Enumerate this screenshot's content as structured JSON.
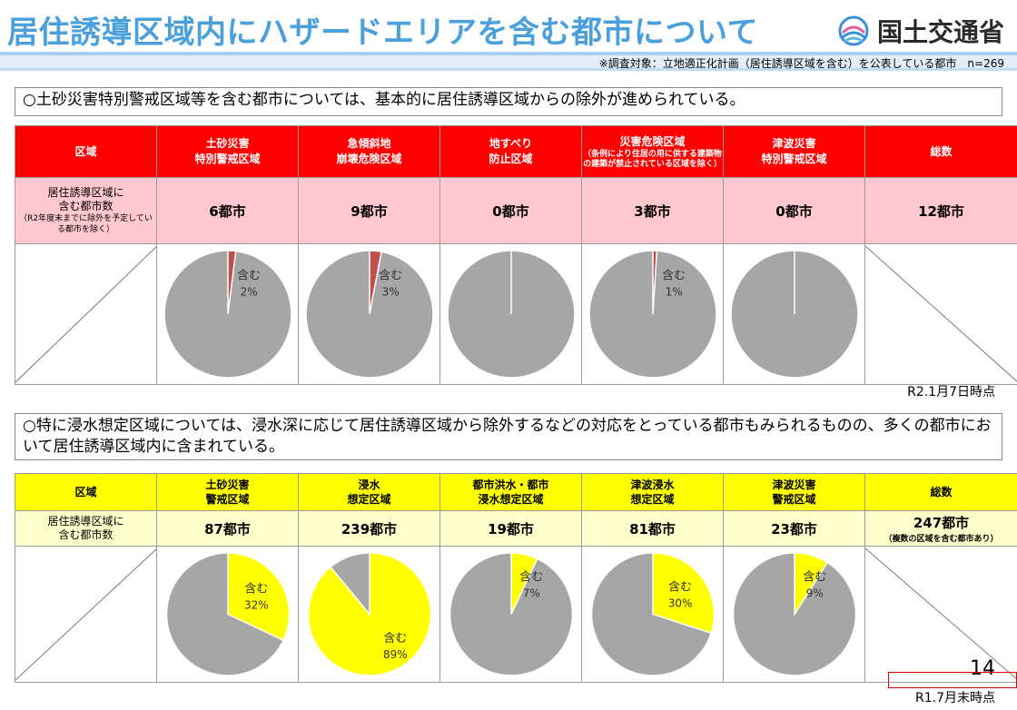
{
  "header": {
    "title": "居住誘導区域内にハザードエリアを含む都市について",
    "logo_text": "国土交通省",
    "survey_note": "※調査対象：立地適正化計画（居住誘導区域を含む）を公表している都市　n=269"
  },
  "section1": {
    "lead": "○土砂災害特別警戒区域等を含む都市については、基本的に居住誘導区域からの除外が進められている。",
    "col0_header": "区域",
    "row_label_line1": "居住誘導区域に",
    "row_label_line2": "含む都市数",
    "row_label_note": "（R2年度末までに除外を予定している都市を除く）",
    "columns": [
      {
        "line1": "土砂災害",
        "line2": "特別警戒区域",
        "count": "6都市"
      },
      {
        "line1": "急傾斜地",
        "line2": "崩壊危険区域",
        "count": "9都市"
      },
      {
        "line1": "地すべり",
        "line2": "防止区域",
        "count": "0都市"
      },
      {
        "line1": "災害危険区域",
        "line2": "（条例により住居の用に供する建築物の建築が禁止されている区域を除く）",
        "count": "3都市"
      },
      {
        "line1": "津波災害",
        "line2": "特別警戒区域",
        "count": "0都市"
      }
    ],
    "total_header": "総数",
    "total_count": "12都市",
    "date_note": "R2.1月7日時点"
  },
  "section2": {
    "lead": "○特に浸水想定区域については、浸水深に応じて居住誘導区域から除外するなどの対応をとっている都市もみられるものの、多くの都市において居住誘導区域内に含まれている。",
    "col0_header": "区域",
    "row_label_line1": "居住誘導区域に",
    "row_label_line2": "含む都市数",
    "columns": [
      {
        "line1": "土砂災害",
        "line2": "警戒区域",
        "count": "87都市"
      },
      {
        "line1": "浸水",
        "line2": "想定区域",
        "count": "239都市"
      },
      {
        "line1": "都市洪水・都市",
        "line2": "浸水想定区域",
        "count": "19都市"
      },
      {
        "line1": "津波浸水",
        "line2": "想定区域",
        "count": "81都市"
      },
      {
        "line1": "津波災害",
        "line2": "警戒区域",
        "count": "23都市"
      }
    ],
    "total_header": "総数",
    "total_count": "247都市",
    "total_note": "（複数の区域を含む都市あり）",
    "date_note": "R1.7月末時点"
  },
  "page_number": "14",
  "chart_data": [
    {
      "type": "pie",
      "group": "section1",
      "slice_label": "含む",
      "colors": {
        "included": "#c0504d",
        "rest": "#a6a6a6"
      },
      "pies": [
        {
          "included_pct": 2,
          "label": "2%"
        },
        {
          "included_pct": 3,
          "label": "3%"
        },
        {
          "included_pct": 0,
          "label": ""
        },
        {
          "included_pct": 1,
          "label": "1%"
        },
        {
          "included_pct": 0,
          "label": ""
        }
      ]
    },
    {
      "type": "pie",
      "group": "section2",
      "slice_label": "含む",
      "colors": {
        "included": "#ffff00",
        "rest": "#a6a6a6"
      },
      "pies": [
        {
          "included_pct": 32,
          "label": "32%"
        },
        {
          "included_pct": 89,
          "label": "89%"
        },
        {
          "included_pct": 7,
          "label": "7%"
        },
        {
          "included_pct": 30,
          "label": "30%"
        },
        {
          "included_pct": 9,
          "label": "9%"
        }
      ]
    }
  ]
}
